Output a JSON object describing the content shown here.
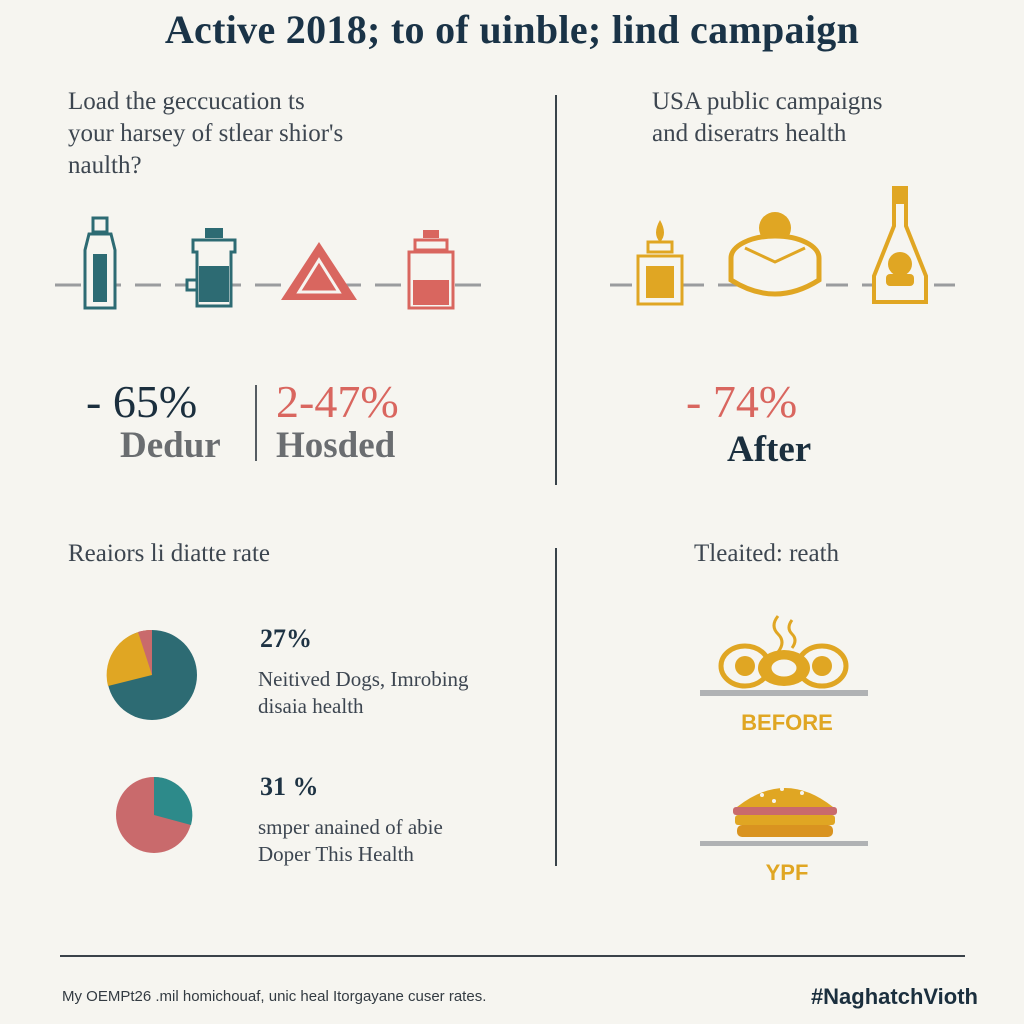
{
  "title": "Active 2018; to of uinble; lind campaign",
  "left_panel": {
    "question": [
      "Load the geccucation ts",
      "your harsey of stlear shior's",
      "naulth?"
    ],
    "stat_before": {
      "value": "- 65%",
      "label": "Dedur"
    },
    "stat_after": {
      "value": "2-47%",
      "label": "Hosded"
    },
    "icons": [
      "bottle-icon",
      "jar-icon",
      "warning-triangle-icon",
      "container-icon"
    ]
  },
  "right_panel": {
    "question": [
      "USA public campaigns",
      "and diseratrs health"
    ],
    "stat": {
      "value": "- 74%",
      "label": "After"
    },
    "icons": [
      "candle-jar-icon",
      "cake-icon",
      "sauce-bottle-icon"
    ]
  },
  "rates_section": {
    "title": "Reaiors li diatte rate",
    "pies": [
      {
        "percent": "27%",
        "desc": [
          "Neitived Dogs, Imrobing",
          "disaia health"
        ],
        "colors": [
          "#2d6b73",
          "#e0a623",
          "#c96a6c"
        ]
      },
      {
        "percent": "31 %",
        "desc": [
          "smper anained of abie",
          "Doper This Health"
        ],
        "colors": [
          "#c96a6c",
          "#2d8a8a"
        ]
      }
    ]
  },
  "treated_section": {
    "title": "Tleaited: reath",
    "before_label": "BEFORE",
    "after_label": "YPF",
    "icons": [
      "steaming-bread-icon",
      "burger-icon"
    ]
  },
  "footer": {
    "note": "My OEMPt26 .mil homichouaf, unic heal Itorgayane cuser rates.",
    "hashtag": "#NaghatchVioth"
  },
  "colors": {
    "navy": "#1b2f3e",
    "teal": "#2d6b73",
    "coral": "#d9665f",
    "gold": "#e0a623"
  }
}
